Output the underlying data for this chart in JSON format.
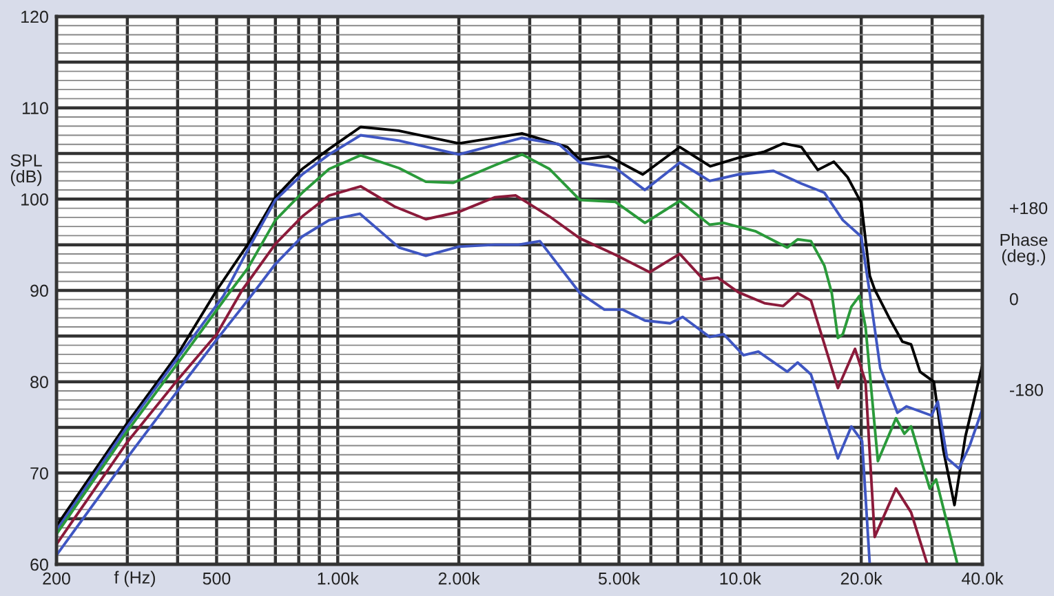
{
  "chart_data": {
    "type": "line",
    "xlabel": "f (Hz)",
    "ylabel": "SPL\n(dB)",
    "y2label": "Phase\n(deg.)",
    "log": "x",
    "grid": true,
    "legend": false,
    "marker": "none",
    "line_style": "solid",
    "xlim": [
      200,
      40000
    ],
    "xticks": [
      200,
      {
        "value": 300,
        "label": null
      },
      {
        "value": 400,
        "label": null
      },
      500,
      {
        "value": 600,
        "label": null
      },
      {
        "value": 700,
        "label": null
      },
      {
        "value": 800,
        "label": null
      },
      {
        "value": 900,
        "label": null
      },
      {
        "value": 1000,
        "label": "1.00k"
      },
      {
        "value": 2000,
        "label": "2.00k"
      },
      {
        "value": 3000,
        "label": null
      },
      {
        "value": 4000,
        "label": null
      },
      {
        "value": 5000,
        "label": "5.00k"
      },
      {
        "value": 6000,
        "label": null
      },
      {
        "value": 7000,
        "label": null
      },
      {
        "value": 8000,
        "label": null
      },
      {
        "value": 9000,
        "label": null
      },
      {
        "value": 10000,
        "label": "10.0k"
      },
      {
        "value": 20000,
        "label": "20.0k"
      },
      {
        "value": 30000,
        "label": null
      },
      {
        "value": 40000,
        "label": "40.0k"
      }
    ],
    "ylim": [
      60,
      120
    ],
    "yticks": [
      60,
      {
        "value": 65,
        "label": null
      },
      70,
      {
        "value": 75,
        "label": null
      },
      80,
      {
        "value": 85,
        "label": null
      },
      90,
      {
        "value": 95,
        "label": null
      },
      100,
      {
        "value": 105,
        "label": null
      },
      110,
      {
        "value": 115,
        "label": null
      },
      120
    ],
    "y2lim": [
      -526,
      559
    ],
    "y2ticks": [
      {
        "value": 180,
        "label": "+180"
      },
      0,
      -180
    ],
    "series": [
      {
        "color": "#000000",
        "x": [
          200,
          300,
          400,
          500,
          597,
          700,
          816,
          952,
          1140,
          1416,
          2000,
          2870,
          3720,
          4000,
          4710,
          5730,
          7080,
          8430,
          9860,
          11500,
          12800,
          14200,
          15600,
          17100,
          18500,
          20000,
          21000,
          21600,
          23400,
          25300,
          26600,
          28000,
          30300,
          32000,
          34100,
          36300,
          40000
        ],
        "values": [
          64.2,
          75.5,
          83.0,
          90.0,
          95.0,
          100.2,
          103.3,
          105.5,
          107.9,
          107.5,
          106.1,
          107.2,
          105.7,
          104.3,
          104.7,
          102.7,
          105.7,
          103.6,
          104.5,
          105.2,
          106.1,
          105.7,
          103.2,
          104.1,
          102.4,
          99.6,
          91.6,
          90.1,
          87.1,
          84.4,
          84.1,
          81.1,
          80.0,
          72.5,
          66.5,
          74.0,
          81.8
        ]
      },
      {
        "color": "#3f56c2",
        "x": [
          200,
          300,
          400,
          520,
          597,
          700,
          816,
          952,
          1140,
          1420,
          2000,
          2870,
          3550,
          4000,
          4900,
          5800,
          7080,
          8400,
          9900,
          12100,
          14200,
          16200,
          18000,
          20000,
          21000,
          22300,
          24600,
          25900,
          29900,
          31000,
          32700,
          35000,
          37200,
          40000
        ],
        "values": [
          63.7,
          75.1,
          82.6,
          89.4,
          94.4,
          99.9,
          102.7,
          104.9,
          107.0,
          106.4,
          104.9,
          106.7,
          106.0,
          104.0,
          103.4,
          101.0,
          104.0,
          102.0,
          102.7,
          103.1,
          101.7,
          100.7,
          97.7,
          95.9,
          89.7,
          81.5,
          76.6,
          77.3,
          76.3,
          77.8,
          71.6,
          70.5,
          73.0,
          77.0
        ]
      },
      {
        "color": "#2a9a3a",
        "x": [
          200,
          300,
          400,
          543,
          597,
          700,
          816,
          952,
          1140,
          1420,
          1656,
          1938,
          2454,
          2870,
          3360,
          4000,
          4900,
          5800,
          7080,
          8400,
          9100,
          10900,
          13100,
          13900,
          15000,
          16200,
          16900,
          17500,
          18000,
          18900,
          19800,
          20500,
          22000,
          24400,
          25600,
          26600,
          29600,
          30700,
          34700
        ],
        "values": [
          63.3,
          74.6,
          82.0,
          90.0,
          92.4,
          97.7,
          100.7,
          103.3,
          104.8,
          103.4,
          101.9,
          101.8,
          103.7,
          104.9,
          103.3,
          99.9,
          99.7,
          97.4,
          99.8,
          97.2,
          97.4,
          96.5,
          94.7,
          95.6,
          95.4,
          92.7,
          89.7,
          84.8,
          85.2,
          88.2,
          89.4,
          86.0,
          71.3,
          76.0,
          74.3,
          75.1,
          68.3,
          69.3,
          60.0
        ]
      },
      {
        "color": "#8b1a3a",
        "x": [
          200,
          300,
          400,
          500,
          578,
          700,
          816,
          952,
          1140,
          1383,
          1656,
          2000,
          2454,
          2770,
          3360,
          4000,
          4900,
          5960,
          7080,
          8100,
          8800,
          9900,
          11500,
          12800,
          13900,
          15000,
          17500,
          19300,
          20500,
          21600,
          24400,
          26600,
          29200
        ],
        "values": [
          62.2,
          73.4,
          80.2,
          85.2,
          90.0,
          95.1,
          98.1,
          100.4,
          101.4,
          99.2,
          97.8,
          98.6,
          100.2,
          100.4,
          98.1,
          95.7,
          93.9,
          92.0,
          94.0,
          91.2,
          91.4,
          89.8,
          88.6,
          88.3,
          89.7,
          88.9,
          79.3,
          83.6,
          80.0,
          63.0,
          68.3,
          65.7,
          60.0
        ]
      },
      {
        "color": "#3f56c2",
        "x": [
          200,
          300,
          400,
          500,
          597,
          700,
          816,
          952,
          1135,
          1420,
          1656,
          2000,
          2454,
          2810,
          3180,
          4000,
          4600,
          5100,
          5800,
          6700,
          7200,
          8400,
          9100,
          10200,
          11100,
          13100,
          13900,
          15000,
          17500,
          18900,
          20100,
          21000
        ],
        "values": [
          61.0,
          71.7,
          79.0,
          84.6,
          88.9,
          92.9,
          95.9,
          97.7,
          98.4,
          94.7,
          93.8,
          94.8,
          95.0,
          95.0,
          95.4,
          89.7,
          87.9,
          87.9,
          86.7,
          86.4,
          87.1,
          84.9,
          85.2,
          82.9,
          83.3,
          81.1,
          82.1,
          80.8,
          71.6,
          75.1,
          73.5,
          60.0
        ]
      }
    ]
  }
}
